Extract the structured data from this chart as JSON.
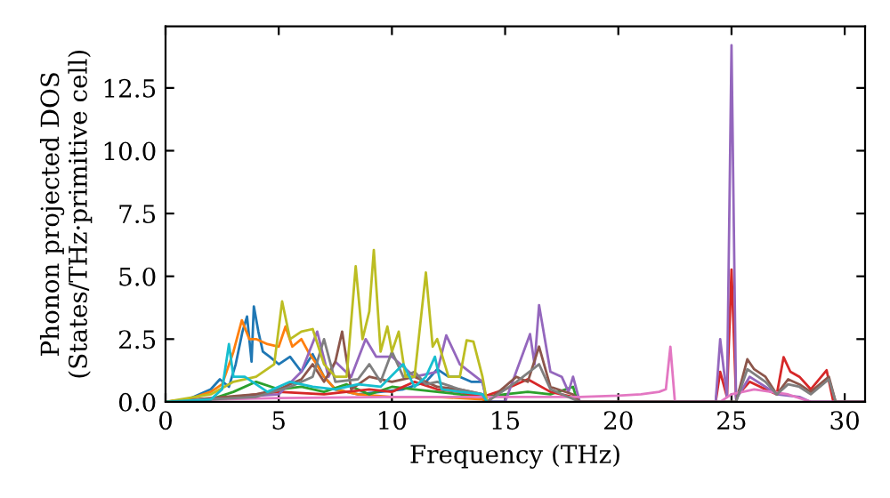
{
  "chart_data": {
    "type": "line",
    "xlabel": "Frequency (THz)",
    "ylabel": "Phonon projected DOS\n(States/THz·primitive cell)",
    "xlim": [
      0,
      30.9
    ],
    "ylim": [
      0,
      14.95
    ],
    "xticks": [
      0,
      5,
      10,
      15,
      20,
      25,
      30
    ],
    "yticks": [
      {
        "value": 0,
        "label": "0.0"
      },
      {
        "value": 2.5,
        "label": "2.5"
      },
      {
        "value": 5,
        "label": "5.0"
      },
      {
        "value": 7.5,
        "label": "7.5"
      },
      {
        "value": 10,
        "label": "10.0"
      },
      {
        "value": 12.5,
        "label": "12.5"
      }
    ],
    "grid": false,
    "marker": "none",
    "line_style": "solid",
    "series": [
      {
        "color": "#1f77b4",
        "x": [
          0,
          1,
          2,
          2.4,
          2.8,
          3.1,
          3.4,
          3.6,
          3.8,
          3.9,
          4.1,
          4.3,
          4.6,
          5.0,
          5.5,
          6.0,
          6.5,
          7.0,
          7.5,
          8.5,
          9.5,
          10.5,
          11.5,
          12.0,
          12.5,
          13.0,
          13.5,
          14.0,
          14.2,
          15
        ],
        "values": [
          0,
          0.1,
          0.5,
          0.9,
          0.6,
          1.5,
          2.8,
          3.4,
          1.6,
          3.8,
          2.8,
          2.0,
          1.8,
          1.5,
          1.8,
          1.2,
          1.9,
          1.0,
          0.5,
          0.3,
          0.4,
          0.5,
          0.8,
          1.3,
          1.0,
          1.0,
          0.8,
          0.8,
          0,
          0
        ]
      },
      {
        "color": "#ff7f0e",
        "x": [
          0,
          1,
          2,
          2.5,
          3.0,
          3.37,
          3.7,
          4.0,
          4.5,
          5.0,
          5.3,
          5.6,
          6.0,
          6.3,
          6.6,
          7.0,
          7.5,
          8.5,
          10,
          12,
          14,
          14.2
        ],
        "values": [
          0,
          0.1,
          0.4,
          0.7,
          2.0,
          3.25,
          2.5,
          2.5,
          2.3,
          2.2,
          3.0,
          2.2,
          2.5,
          2.0,
          1.6,
          1.0,
          0.5,
          0.3,
          0.2,
          0.2,
          0.1,
          0
        ]
      },
      {
        "color": "#2ca02c",
        "x": [
          0,
          2,
          3,
          4,
          5,
          6,
          7,
          8,
          9,
          10,
          11,
          12,
          13,
          14,
          15,
          16,
          17,
          18,
          18.2
        ],
        "values": [
          0,
          0.1,
          0.4,
          0.8,
          0.5,
          0.6,
          0.4,
          0.7,
          0.3,
          0.6,
          0.5,
          0.4,
          0.3,
          0.2,
          0.3,
          0.4,
          0.3,
          0.6,
          0
        ]
      },
      {
        "color": "#d62728",
        "x": [
          0,
          3,
          5,
          7,
          9,
          10,
          11,
          12,
          13,
          14,
          15,
          16,
          17,
          18,
          18.3,
          24.3,
          24.5,
          24.8,
          25.0,
          25.2,
          25.8,
          26.5,
          27.0,
          27.3,
          27.6,
          28.0,
          28.5,
          29.2,
          29.5,
          30.9
        ],
        "values": [
          0,
          0.2,
          0.4,
          0.3,
          0.5,
          0.4,
          0.8,
          0.5,
          0.4,
          0.2,
          0.5,
          0.9,
          0.4,
          0.2,
          0,
          0,
          1.2,
          0.2,
          5.27,
          0.2,
          0.8,
          0.5,
          0.3,
          1.78,
          1.2,
          1.0,
          0.5,
          1.26,
          0,
          0
        ]
      },
      {
        "color": "#9467bd",
        "x": [
          0,
          5,
          6,
          6.7,
          7.2,
          7.5,
          8.2,
          8.84,
          9.3,
          10,
          11,
          12.0,
          12.4,
          13,
          14,
          14.2,
          15,
          16.1,
          16.3,
          16.5,
          17,
          17.5,
          17.8,
          18,
          18.3,
          24.3,
          24.5,
          24.8,
          25.0,
          25.2,
          25.8,
          26.5,
          27,
          28,
          28.5,
          30.9
        ],
        "values": [
          0,
          0.3,
          1.2,
          2.8,
          1.0,
          1.6,
          1.0,
          2.5,
          1.8,
          1.8,
          1.0,
          1.2,
          2.65,
          1.5,
          0.8,
          0,
          0,
          2.7,
          1.5,
          3.85,
          1.2,
          1.0,
          0.4,
          1.0,
          0,
          0,
          2.5,
          0.2,
          14.2,
          0.1,
          1.0,
          0.6,
          0.3,
          0.2,
          0,
          0
        ]
      },
      {
        "color": "#8c564b",
        "x": [
          0,
          4,
          5,
          6,
          6.5,
          7,
          7.5,
          7.8,
          8.2,
          9,
          10,
          11,
          12,
          13,
          14,
          14.2,
          15.5,
          16,
          16.5,
          17,
          18,
          18.3,
          25.2,
          25.7,
          26,
          26.5,
          27,
          27.5,
          28,
          28.5,
          29.3,
          29.6,
          30.9
        ],
        "values": [
          0,
          0.3,
          0.5,
          0.9,
          1.5,
          0.8,
          1.6,
          2.8,
          0.5,
          1.0,
          0.8,
          1.0,
          0.6,
          0.5,
          0.3,
          0,
          1.0,
          0.8,
          2.2,
          0.6,
          0.3,
          0,
          0,
          1.7,
          1.3,
          1.0,
          0.3,
          0.9,
          0.7,
          0.4,
          1.0,
          0,
          0
        ]
      },
      {
        "color": "#e377c2",
        "x": [
          0,
          2,
          5,
          10,
          15,
          18.3,
          20,
          21,
          21.8,
          22.1,
          22.3,
          22.5,
          24.5,
          25.0,
          26,
          27.5,
          28.5,
          30.9
        ],
        "values": [
          0,
          0.1,
          0.15,
          0.2,
          0.2,
          0.2,
          0.25,
          0.3,
          0.4,
          0.5,
          2.2,
          0,
          0,
          0.3,
          0.5,
          0.3,
          0,
          0
        ]
      },
      {
        "color": "#7f7f7f",
        "x": [
          0,
          4,
          5.5,
          6.5,
          7.0,
          7.5,
          8.5,
          9,
          9.5,
          10,
          10.5,
          11,
          11.5,
          12,
          13,
          14,
          14.2,
          15.5,
          16.5,
          17,
          18.3,
          25.2,
          25.7,
          26.5,
          27.0,
          27.5,
          28,
          28.5,
          29.3,
          29.6,
          30.9
        ],
        "values": [
          0,
          0.2,
          0.6,
          1.0,
          2.5,
          0.8,
          0.9,
          1.5,
          0.8,
          2.0,
          1.0,
          1.2,
          0.7,
          0.8,
          0.5,
          0.3,
          0,
          0.8,
          1.5,
          0.5,
          0,
          0,
          1.3,
          0.8,
          0.3,
          0.7,
          0.6,
          0.3,
          0.9,
          0,
          0
        ]
      },
      {
        "color": "#bcbd22",
        "x": [
          0,
          2,
          3,
          4,
          4.8,
          5.15,
          5.5,
          6.0,
          6.5,
          7.0,
          7.5,
          8.0,
          8.4,
          8.7,
          9.0,
          9.2,
          9.5,
          9.8,
          10.0,
          10.3,
          10.6,
          11.0,
          11.5,
          11.8,
          12.0,
          12.5,
          13.0,
          13.3,
          13.6,
          14.0,
          14.2
        ],
        "values": [
          0,
          0.3,
          0.8,
          1.0,
          1.5,
          4.0,
          2.5,
          2.8,
          2.9,
          1.5,
          1.0,
          1.0,
          5.4,
          2.5,
          3.6,
          6.05,
          2.0,
          3.0,
          2.0,
          2.8,
          1.0,
          1.0,
          5.15,
          2.2,
          2.5,
          1.0,
          1.0,
          2.45,
          2.4,
          1.0,
          0
        ]
      },
      {
        "color": "#17becf",
        "x": [
          0,
          2,
          2.5,
          2.8,
          3.0,
          3.5,
          4.5,
          5.5,
          6.5,
          7.5,
          8.5,
          9.5,
          10.5,
          11.0,
          11.5,
          11.9,
          12.2,
          13,
          14,
          14.2
        ],
        "values": [
          0,
          0.1,
          0.5,
          2.3,
          1.0,
          1.0,
          0.4,
          0.8,
          0.6,
          0.5,
          0.7,
          0.6,
          1.5,
          0.6,
          1.0,
          1.8,
          0.5,
          0.4,
          0.3,
          0
        ]
      }
    ]
  }
}
